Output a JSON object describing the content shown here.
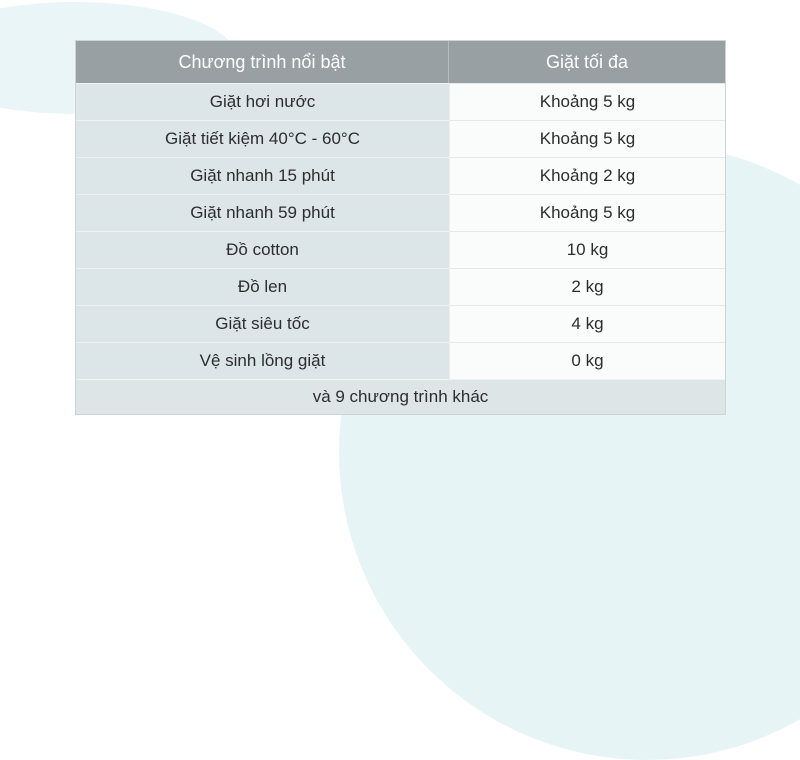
{
  "page": {
    "background_color": "#ffffff",
    "decoration_colors": {
      "blob_topleft": "#e9f5f6",
      "blob_bottomright": "#e7f4f5"
    }
  },
  "chart_data": {
    "type": "table",
    "title": "",
    "columns": [
      "Chương trình nổi bật",
      "Giặt tối đa"
    ],
    "rows": [
      [
        "Giặt hơi nước",
        "Khoảng 5 kg"
      ],
      [
        "Giặt tiết kiệm 40°C - 60°C",
        "Khoảng 5 kg"
      ],
      [
        "Giặt nhanh 15 phút",
        "Khoảng 2 kg"
      ],
      [
        "Giặt nhanh 59 phút",
        "Khoảng 5 kg"
      ],
      [
        "Đồ cotton",
        "10 kg"
      ],
      [
        "Đồ len",
        "2 kg"
      ],
      [
        "Giặt siêu tốc",
        "4 kg"
      ],
      [
        "Vệ sinh lồng giặt",
        "0 kg"
      ]
    ],
    "footer": "và 9 chương trình khác",
    "layout": {
      "header_bg": "#98a0a3",
      "header_text_color": "#ffffff",
      "left_cell_bg": "#dce5e7",
      "right_cell_bg": "#fafbfb",
      "footer_bg": "#dde5e6",
      "body_text_color": "#2d2d2d",
      "border_color": "#ccd5d6"
    }
  }
}
